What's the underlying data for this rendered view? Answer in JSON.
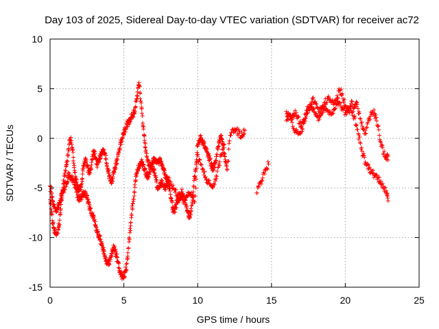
{
  "chart_data": {
    "type": "scatter",
    "title": "Day 103 of 2025, Sidereal Day-to-day VTEC variation (SDTVAR) for receiver ac72",
    "xlabel": "GPS time / hours",
    "ylabel": "SDTVAR / TECUs",
    "xlim": [
      0,
      25
    ],
    "ylim": [
      -15,
      10
    ],
    "xticks": [
      0,
      5,
      10,
      15,
      20,
      25
    ],
    "yticks": [
      -15,
      -10,
      -5,
      0,
      5,
      10
    ],
    "grid": true,
    "marker": "+",
    "color": "#ff0000",
    "series": [
      {
        "name": "SDTVAR",
        "trace_a": {
          "x": [
            0.0,
            0.1,
            0.2,
            0.3,
            0.4,
            0.5,
            0.6,
            0.7,
            0.8,
            0.9,
            1.0,
            1.1,
            1.2,
            1.3,
            1.4,
            1.5,
            1.6,
            1.7,
            1.8,
            1.9,
            2.0,
            2.1,
            2.2,
            2.3,
            2.4,
            2.5,
            2.6,
            2.7,
            2.8,
            2.9,
            3.0,
            3.1,
            3.2,
            3.3,
            3.4,
            3.5,
            3.6,
            3.7,
            3.8,
            3.9,
            4.0,
            4.1,
            4.2,
            4.3,
            4.4,
            4.5,
            4.6,
            4.7,
            4.8,
            4.9,
            5.0,
            5.1,
            5.2,
            5.3,
            5.4,
            5.5,
            5.6,
            5.7,
            5.8,
            5.9,
            6.0,
            6.1,
            6.2,
            6.3,
            6.4,
            6.5,
            6.6,
            6.7,
            6.8,
            6.9,
            7.0,
            7.1,
            7.2,
            7.3,
            7.4,
            7.5,
            7.6,
            7.7,
            7.8,
            7.9,
            8.0,
            8.1,
            8.2,
            8.3,
            8.4,
            8.5,
            8.6,
            8.7,
            8.8,
            8.9,
            9.0,
            9.1,
            9.2,
            9.3,
            9.4,
            9.5,
            9.6,
            9.7,
            9.8,
            9.9,
            10.0,
            10.1,
            10.2,
            10.3,
            10.4,
            10.5,
            10.6,
            10.7,
            10.8,
            10.9,
            11.0,
            11.1,
            11.2,
            11.3,
            11.4,
            11.5,
            11.6,
            11.7,
            11.8,
            11.9,
            12.0,
            12.2,
            12.4,
            12.6,
            12.8,
            13.0,
            13.2,
            14.0,
            14.2,
            14.4,
            14.6,
            14.8,
            16.0,
            16.2,
            16.4,
            16.6,
            16.8,
            17.0,
            17.2,
            17.4,
            17.6,
            17.8,
            18.0,
            18.2,
            18.4,
            18.6,
            18.8,
            19.0,
            19.2,
            19.4,
            19.6,
            19.8,
            20.0,
            20.2,
            20.4,
            20.6,
            20.8,
            21.0,
            21.2,
            21.4,
            21.6,
            21.8,
            22.0,
            22.2,
            22.4,
            22.6,
            22.8,
            22.9
          ],
          "y": [
            -6.2,
            -7.5,
            -8.6,
            -9.3,
            -9.7,
            -9.6,
            -8.8,
            -7.5,
            -6.0,
            -4.6,
            -3.5,
            -2.8,
            -1.6,
            -0.6,
            0.1,
            -0.9,
            -2.5,
            -4.0,
            -4.4,
            -4.9,
            -5.3,
            -4.8,
            -3.6,
            -2.5,
            -2.0,
            -2.7,
            -3.4,
            -3.5,
            -2.7,
            -1.6,
            -1.3,
            -2.0,
            -2.7,
            -2.3,
            -1.8,
            -1.5,
            -1.2,
            -1.5,
            -2.1,
            -3.0,
            -3.8,
            -4.3,
            -4.2,
            -3.6,
            -2.9,
            -2.5,
            -1.8,
            -1.0,
            -0.4,
            0.0,
            0.4,
            0.9,
            1.4,
            1.6,
            1.8,
            2.1,
            2.4,
            2.6,
            3.2,
            4.3,
            5.4,
            4.6,
            3.0,
            1.2,
            -0.2,
            -1.2,
            -2.1,
            -2.7,
            -3.0,
            -3.1,
            -3.2,
            -3.5,
            -4.4,
            -5.0,
            -4.9,
            -4.5,
            -4.6,
            -4.9,
            -5.0,
            -4.7,
            -4.5,
            -5.1,
            -6.1,
            -7.0,
            -7.4,
            -7.0,
            -6.5,
            -6.0,
            -5.6,
            -5.4,
            -5.6,
            -6.0,
            -6.7,
            -7.3,
            -7.8,
            -7.6,
            -6.8,
            -5.4,
            -3.8,
            -2.5,
            -0.8,
            -0.2,
            0.0,
            -0.3,
            -0.5,
            -0.9,
            -1.3,
            -1.7,
            -2.1,
            -2.6,
            -3.0,
            -2.9,
            -2.4,
            -1.6,
            -0.8,
            -0.2,
            0.3,
            -0.5,
            -1.5,
            -2.4,
            -3.1,
            0.3,
            0.8,
            0.9,
            0.5,
            0.3,
            0.8,
            -5.5,
            -4.5,
            -4.0,
            -3.2,
            -2.6,
            2.7,
            2.3,
            1.9,
            2.8,
            2.1,
            1.2,
            1.5,
            2.5,
            3.3,
            3.9,
            3.5,
            2.7,
            3.0,
            3.6,
            4.0,
            3.8,
            3.4,
            3.9,
            4.8,
            4.5,
            3.3,
            2.7,
            3.5,
            3.1,
            3.6,
            2.0,
            0.9,
            0.5,
            1.8,
            2.6,
            2.5,
            1.2,
            -0.4,
            -1.5,
            -2.1,
            -1.8
          ]
        },
        "trace_b": {
          "x": [
            0.0,
            0.1,
            0.2,
            0.3,
            0.4,
            0.5,
            0.6,
            0.7,
            0.8,
            0.9,
            1.0,
            1.1,
            1.2,
            1.3,
            1.4,
            1.5,
            1.6,
            1.7,
            1.8,
            1.9,
            2.0,
            2.1,
            2.2,
            2.3,
            2.4,
            2.5,
            2.6,
            2.7,
            2.8,
            2.9,
            3.0,
            3.1,
            3.2,
            3.3,
            3.4,
            3.5,
            3.6,
            3.7,
            3.8,
            3.9,
            4.0,
            4.1,
            4.2,
            4.3,
            4.4,
            4.5,
            4.6,
            4.7,
            4.8,
            4.9,
            5.0,
            5.1,
            5.2,
            5.3,
            5.4,
            5.5,
            5.6,
            5.7,
            5.8,
            5.9,
            6.0,
            6.1,
            6.2,
            6.3,
            6.4,
            6.5,
            6.6,
            6.7,
            6.8,
            6.9,
            7.0,
            7.1,
            7.2,
            7.3,
            7.4,
            7.5,
            7.6,
            7.7,
            7.8,
            7.9,
            8.0,
            8.2,
            8.4,
            8.6,
            8.8,
            9.0,
            9.2,
            9.4,
            9.6,
            9.8,
            10.0,
            10.2,
            10.4,
            10.6,
            10.8,
            11.0,
            11.2,
            11.4,
            11.6,
            11.8,
            16.0,
            16.2,
            16.4,
            16.6,
            16.8,
            17.0,
            17.2,
            17.4,
            17.6,
            17.8,
            18.0,
            18.2,
            18.4,
            18.6,
            18.8,
            19.0,
            19.2,
            19.4,
            19.6,
            19.8,
            20.0,
            20.2,
            20.4,
            20.6,
            20.8,
            21.0,
            21.2,
            21.4,
            21.6,
            21.8,
            22.0,
            22.2,
            22.4,
            22.6,
            22.8,
            22.9
          ],
          "y": [
            -4.8,
            -5.6,
            -6.4,
            -6.9,
            -7.1,
            -7.0,
            -6.7,
            -6.1,
            -5.5,
            -5.2,
            -4.9,
            -4.5,
            -3.9,
            -3.7,
            -3.9,
            -4.1,
            -4.3,
            -4.8,
            -5.4,
            -5.9,
            -6.1,
            -6.0,
            -5.7,
            -5.4,
            -5.6,
            -5.9,
            -6.5,
            -7.1,
            -7.6,
            -7.9,
            -8.2,
            -8.9,
            -9.5,
            -9.9,
            -10.2,
            -10.7,
            -11.2,
            -11.9,
            -12.4,
            -12.7,
            -12.6,
            -12.0,
            -11.4,
            -11.0,
            -11.3,
            -11.9,
            -12.5,
            -13.1,
            -13.6,
            -13.9,
            -14.0,
            -13.5,
            -12.6,
            -11.1,
            -9.5,
            -8.0,
            -6.6,
            -5.4,
            -4.3,
            -3.4,
            -2.9,
            -2.6,
            -2.4,
            -2.6,
            -3.1,
            -3.6,
            -3.8,
            -3.5,
            -3.0,
            -2.5,
            -2.2,
            -2.3,
            -2.5,
            -2.4,
            -2.2,
            -2.3,
            -2.7,
            -3.2,
            -3.7,
            -3.9,
            -4.2,
            -4.6,
            -5.1,
            -5.7,
            -6.1,
            -6.2,
            -6.0,
            -5.5,
            -5.8,
            -6.4,
            -1.8,
            -2.6,
            -3.4,
            -4.1,
            -4.6,
            -4.9,
            -4.3,
            -2.9,
            -1.6,
            -0.6,
            1.8,
            2.4,
            1.6,
            0.8,
            0.4,
            0.6,
            1.9,
            2.8,
            3.4,
            2.9,
            2.5,
            2.1,
            2.7,
            3.2,
            2.8,
            2.4,
            2.9,
            3.4,
            3.6,
            3.1,
            2.6,
            3.0,
            2.8,
            2.2,
            0.9,
            -0.4,
            -1.7,
            -2.6,
            -3.0,
            -3.4,
            -3.7,
            -4.0,
            -4.3,
            -4.9,
            -5.6,
            -6.3
          ]
        }
      }
    ]
  }
}
